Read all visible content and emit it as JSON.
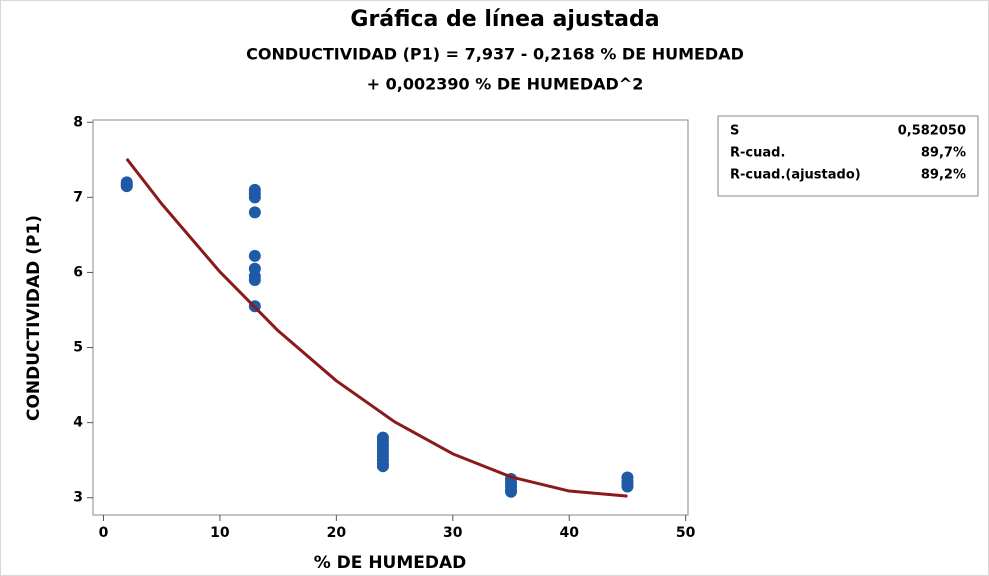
{
  "chart_data": {
    "type": "scatter",
    "title": "Gráfica de línea ajustada",
    "subtitle": [
      "CONDUCTIVIDAD (P1) = 7,937 - 0,2168 % DE HUMEDAD",
      "+ 0,002390 % DE HUMEDAD^2"
    ],
    "xlabel": "% DE HUMEDAD",
    "ylabel": "CONDUCTIVIDAD (P1)",
    "xlim": [
      -0.9,
      50.2
    ],
    "xticks": [
      0,
      10,
      20,
      30,
      40,
      50
    ],
    "ylim": [
      2.77,
      8.03
    ],
    "yticks": [
      3,
      4,
      5,
      6,
      7,
      8
    ],
    "series": [
      {
        "color": "#1f5aa6",
        "x": [
          2,
          2,
          2,
          13,
          13,
          13,
          13,
          13,
          13,
          13,
          13,
          13,
          24,
          24,
          24,
          24,
          24,
          24,
          24,
          24,
          24,
          35,
          35,
          35,
          35,
          35,
          45,
          45,
          45,
          45
        ],
        "values": [
          7.2,
          7.17,
          7.15,
          7.1,
          7.05,
          7.0,
          6.8,
          6.22,
          6.05,
          5.95,
          5.9,
          5.55,
          3.8,
          3.75,
          3.7,
          3.65,
          3.6,
          3.55,
          3.5,
          3.45,
          3.42,
          3.25,
          3.2,
          3.15,
          3.1,
          3.08,
          3.27,
          3.22,
          3.18,
          3.15
        ]
      }
    ],
    "fit_line": {
      "color": "#8b1a1a",
      "x": [
        2,
        5,
        10,
        15,
        20,
        25,
        30,
        35,
        40,
        45
      ],
      "values": [
        7.513,
        6.913,
        6.008,
        5.223,
        4.557,
        4.011,
        3.584,
        3.277,
        3.089,
        3.021
      ]
    },
    "stats": [
      [
        "S",
        "0,582050"
      ],
      [
        "R-cuad.",
        "89,7%"
      ],
      [
        "R-cuad.(ajustado)",
        "89,2%"
      ]
    ]
  }
}
